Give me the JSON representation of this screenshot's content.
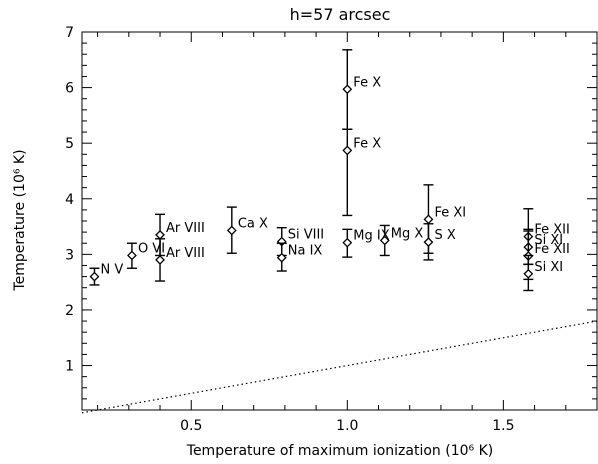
{
  "chart_data": {
    "type": "scatter",
    "title": "h=57 arcsec",
    "xlabel": "Temperature of maximum ionization (10⁶ K)",
    "ylabel": "Temperature (10⁶ K)",
    "xlim": [
      0.15,
      1.8
    ],
    "ylim": [
      0.2,
      7.0
    ],
    "xticks": [
      0.5,
      1.0,
      1.5
    ],
    "xtick_labels": [
      "0.5",
      "1.0",
      "1.5"
    ],
    "yticks": [
      1,
      2,
      3,
      4,
      5,
      6,
      7
    ],
    "ytick_labels": [
      "1",
      "2",
      "3",
      "4",
      "5",
      "6",
      "7"
    ],
    "grid": false,
    "marker": "diamond",
    "points": [
      {
        "label": "N V",
        "x": 0.19,
        "y": 2.6,
        "ylow": 2.45,
        "yhigh": 2.75
      },
      {
        "label": "O VI",
        "x": 0.31,
        "y": 2.98,
        "ylow": 2.75,
        "yhigh": 3.2
      },
      {
        "label": "Ar VIII",
        "x": 0.4,
        "y": 3.35,
        "ylow": 2.98,
        "yhigh": 3.72
      },
      {
        "label": "Ar VIII",
        "x": 0.4,
        "y": 2.9,
        "ylow": 2.52,
        "yhigh": 3.28
      },
      {
        "label": "Ca X",
        "x": 0.63,
        "y": 3.43,
        "ylow": 3.02,
        "yhigh": 3.85
      },
      {
        "label": "Si VIII",
        "x": 0.79,
        "y": 3.23,
        "ylow": 2.98,
        "yhigh": 3.48
      },
      {
        "label": "Na IX",
        "x": 0.79,
        "y": 2.94,
        "ylow": 2.7,
        "yhigh": 3.2
      },
      {
        "label": "Fe X",
        "x": 1.0,
        "y": 5.97,
        "ylow": 5.25,
        "yhigh": 6.68
      },
      {
        "label": "Fe X",
        "x": 1.0,
        "y": 4.87,
        "ylow": 3.7,
        "yhigh": 5.25
      },
      {
        "label": "Mg IX",
        "x": 1.0,
        "y": 3.21,
        "ylow": 2.95,
        "yhigh": 3.45
      },
      {
        "label": "Mg X",
        "x": 1.12,
        "y": 3.25,
        "ylow": 2.98,
        "yhigh": 3.52
      },
      {
        "label": "Fe XI",
        "x": 1.26,
        "y": 3.63,
        "ylow": 3.02,
        "yhigh": 4.25
      },
      {
        "label": "S X",
        "x": 1.26,
        "y": 3.22,
        "ylow": 2.9,
        "yhigh": 3.55
      },
      {
        "label": "Fe XII",
        "x": 1.58,
        "y": 3.32,
        "ylow": 2.82,
        "yhigh": 3.82
      },
      {
        "label": "Si XI",
        "x": 1.58,
        "y": 3.13,
        "ylow": 2.82,
        "yhigh": 3.45
      },
      {
        "label": "Fe XII",
        "x": 1.58,
        "y": 2.97,
        "ylow": 2.55,
        "yhigh": 3.42
      },
      {
        "label": "Si XI",
        "x": 1.58,
        "y": 2.65,
        "ylow": 2.35,
        "yhigh": 2.98
      }
    ],
    "reference_line": {
      "style": "dotted",
      "x": [
        0.15,
        1.8
      ],
      "y": [
        0.15,
        1.8
      ]
    }
  }
}
